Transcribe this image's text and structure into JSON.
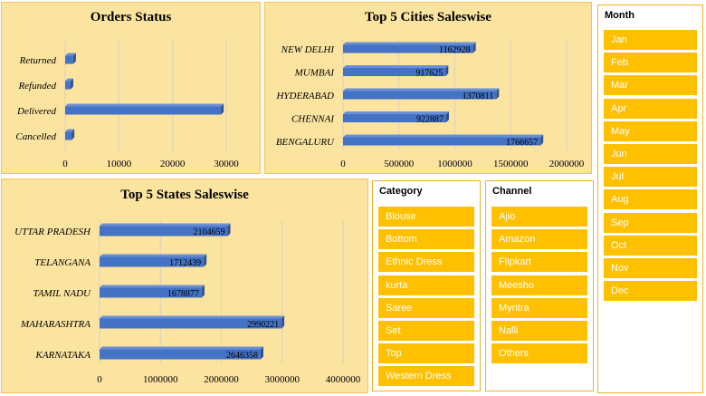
{
  "orders_status": {
    "title": "Orders Status",
    "chart_data": {
      "type": "bar",
      "orientation": "horizontal",
      "categories": [
        "Returned",
        "Refunded",
        "Delivered",
        "Cancelled"
      ],
      "values": [
        1500,
        1000,
        29000,
        1200
      ],
      "xlim": [
        0,
        30000
      ],
      "xticks": [
        "0",
        "10000",
        "20000",
        "30000"
      ],
      "bar_color": "#4472c4"
    }
  },
  "top_cities": {
    "title": "Top 5 Cities Saleswise",
    "chart_data": {
      "type": "bar",
      "orientation": "horizontal",
      "categories": [
        "NEW DELHI",
        "MUMBAI",
        "HYDERABAD",
        "CHENNAI",
        "BENGALURU"
      ],
      "values": [
        1162928,
        917625,
        1370811,
        922887,
        1766657
      ],
      "labels": [
        "1162928",
        "917625",
        "1370811",
        "922887",
        "1766657"
      ],
      "xlim": [
        0,
        2000000
      ],
      "xticks": [
        "0",
        "500000",
        "1000000",
        "1500000",
        "2000000"
      ],
      "bar_color": "#4472c4"
    }
  },
  "top_states": {
    "title": "Top 5 States Saleswise",
    "chart_data": {
      "type": "bar",
      "orientation": "horizontal",
      "categories": [
        "UTTAR PRADESH",
        "TELANGANA",
        "TAMIL NADU",
        "MAHARASHTRA",
        "KARNATAKA"
      ],
      "values": [
        2104659,
        1712439,
        1678877,
        2990221,
        2646358
      ],
      "labels": [
        "2104659",
        "1712439",
        "1678877",
        "2990221",
        "2646358"
      ],
      "xlim": [
        0,
        4000000
      ],
      "xticks": [
        "0",
        "1000000",
        "2000000",
        "3000000",
        "4000000"
      ],
      "bar_color": "#4472c4"
    }
  },
  "category_slicer": {
    "title": "Category",
    "items": [
      "Blouse",
      "Bottom",
      "Ethnic Dress",
      "kurta",
      "Saree",
      "Set",
      "Top",
      "Western Dress"
    ]
  },
  "channel_slicer": {
    "title": "Channel",
    "items": [
      "Ajio",
      "Amazon",
      "Flipkart",
      "Meesho",
      "Myntra",
      "Nalli",
      "Others"
    ]
  },
  "month_slicer": {
    "title": "Month",
    "items": [
      "Jan",
      "Feb",
      "Mar",
      "Apr",
      "May",
      "Jun",
      "Jul",
      "Aug",
      "Sep",
      "Oct",
      "Nov",
      "Dec"
    ]
  },
  "colors": {
    "panel_bg": "#fbe3a0",
    "slicer_button": "#ffc000",
    "bar": "#4472c4"
  }
}
